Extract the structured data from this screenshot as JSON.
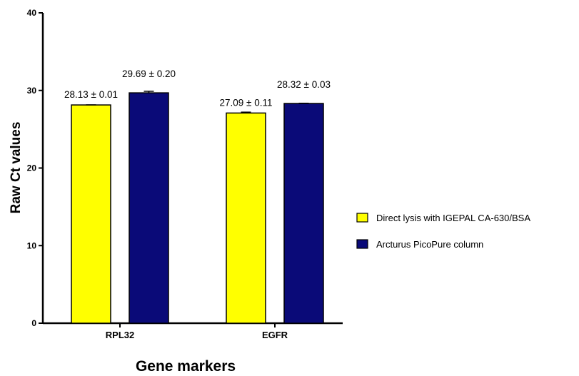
{
  "chart_data": {
    "type": "bar",
    "title": "",
    "xlabel": "Gene markers",
    "ylabel": "Raw Ct values",
    "ylim": [
      0,
      40
    ],
    "yticks": [
      0,
      10,
      20,
      30,
      40
    ],
    "categories": [
      "RPL32",
      "EGFR"
    ],
    "series": [
      {
        "name": "Direct lysis with IGEPAL CA-630/BSA",
        "color": "#ffff00",
        "values": [
          28.13,
          27.09
        ],
        "errors": [
          0.01,
          0.11
        ],
        "labels": [
          "28.13 ± 0.01",
          "27.09 ± 0.11"
        ]
      },
      {
        "name": "Arcturus PicoPure column",
        "color": "#0a0a78",
        "values": [
          29.69,
          28.32
        ],
        "errors": [
          0.2,
          0.03
        ],
        "labels": [
          "29.69 ± 0.20",
          "28.32 ± 0.03"
        ]
      }
    ],
    "legend_position": "right",
    "grid": false
  }
}
